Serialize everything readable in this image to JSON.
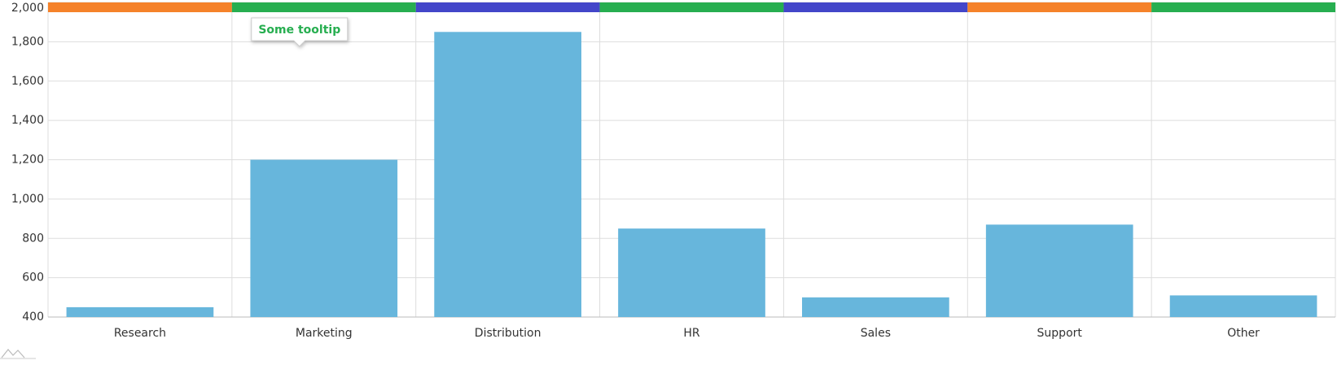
{
  "chart_data": {
    "type": "bar",
    "categories": [
      "Research",
      "Marketing",
      "Distribution",
      "HR",
      "Sales",
      "Support",
      "Other"
    ],
    "values": [
      450,
      1200,
      1850,
      850,
      500,
      870,
      510
    ],
    "color": "#67b6dc",
    "band_colors": [
      "#f5822a",
      "#27ae50",
      "#4346c9",
      "#27ae50",
      "#4346c9",
      "#f5822a",
      "#27ae50"
    ],
    "ylim": [
      400,
      2000
    ],
    "yticks": [
      400,
      600,
      800,
      {
        "value": 1000,
        "label": "1,000"
      },
      {
        "value": 1200,
        "label": "1,200"
      },
      {
        "value": 1400,
        "label": "1,400"
      },
      {
        "value": 1600,
        "label": "1,600"
      },
      {
        "value": 1800,
        "label": "1,800"
      },
      {
        "value": 2000,
        "label": "2,000"
      }
    ],
    "grid": true,
    "tooltip": {
      "text": "Some tooltip",
      "category": "Marketing"
    }
  }
}
